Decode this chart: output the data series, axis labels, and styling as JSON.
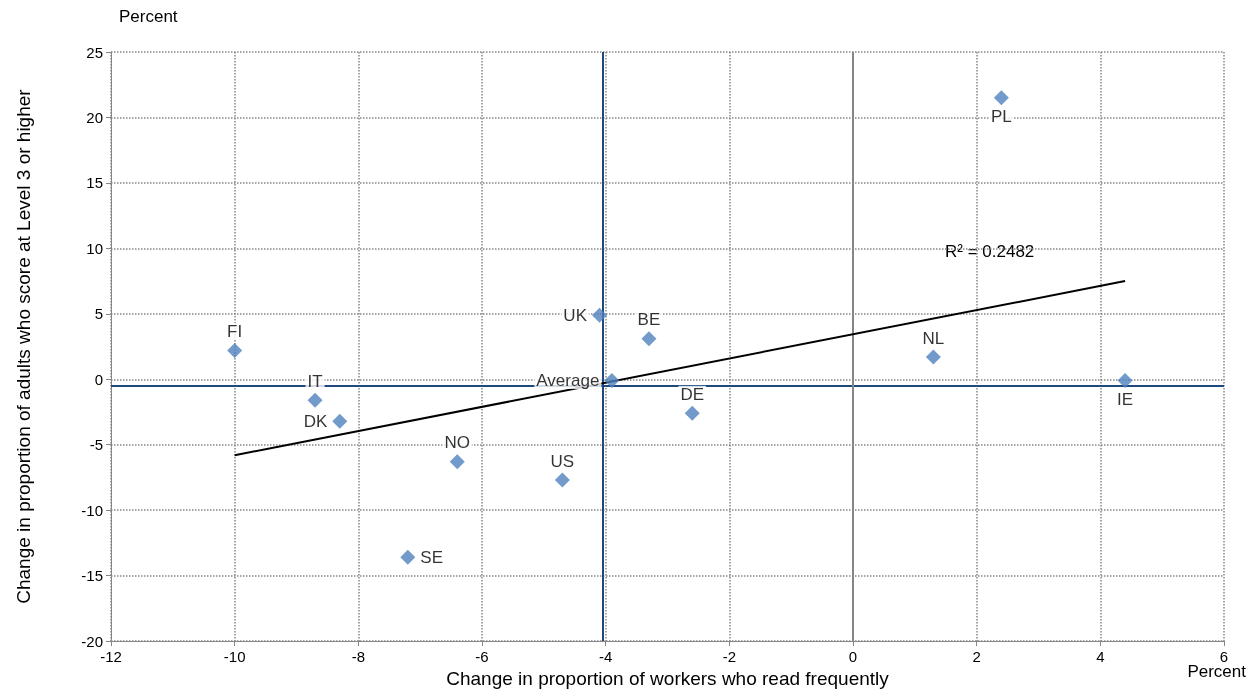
{
  "chart_data": {
    "type": "scatter",
    "xlabel": "Change in proportion of workers who read frequently",
    "ylabel": "Change in proportion of adults who score at Level 3 or higher",
    "xlim": [
      -12,
      6
    ],
    "xticks": [
      -12,
      -10,
      -8,
      -6,
      -4,
      -2,
      0,
      2,
      4,
      6
    ],
    "ylim": [
      -20,
      25
    ],
    "yticks": [
      -20,
      -15,
      -10,
      -5,
      0,
      5,
      10,
      15,
      20,
      25
    ],
    "grid": true,
    "marker": "diamond",
    "legend": false,
    "series": [
      {
        "name": "FI",
        "color": "#4f81bd",
        "x": [
          -10.0
        ],
        "values": [
          2.2
        ]
      },
      {
        "name": "IT",
        "color": "#4f81bd",
        "x": [
          -8.7
        ],
        "values": [
          -1.6
        ]
      },
      {
        "name": "DK",
        "color": "#4f81bd",
        "x": [
          -8.3
        ],
        "values": [
          -3.2
        ]
      },
      {
        "name": "NO",
        "color": "#4f81bd",
        "x": [
          -6.4
        ],
        "values": [
          -6.3
        ]
      },
      {
        "name": "SE",
        "color": "#4f81bd",
        "x": [
          -7.2
        ],
        "values": [
          -13.6
        ]
      },
      {
        "name": "US",
        "color": "#4f81bd",
        "x": [
          -4.7
        ],
        "values": [
          -7.7
        ]
      },
      {
        "name": "UK",
        "color": "#4f81bd",
        "x": [
          -4.1
        ],
        "values": [
          4.9
        ]
      },
      {
        "name": "BE",
        "color": "#4f81bd",
        "x": [
          -3.3
        ],
        "values": [
          3.1
        ]
      },
      {
        "name": "Average",
        "color": "#4f81bd",
        "x": [
          -3.9
        ],
        "values": [
          -0.1
        ]
      },
      {
        "name": "DE",
        "color": "#4f81bd",
        "x": [
          -2.6
        ],
        "values": [
          -2.6
        ]
      },
      {
        "name": "NL",
        "color": "#4f81bd",
        "x": [
          1.3
        ],
        "values": [
          1.7
        ]
      },
      {
        "name": "PL",
        "color": "#4f81bd",
        "x": [
          2.4
        ],
        "values": [
          21.5
        ]
      },
      {
        "name": "IE",
        "color": "#4f81bd",
        "x": [
          4.4
        ],
        "values": [
          -0.1
        ]
      },
      {
        "type": "line",
        "color": "#000000",
        "marker": "none",
        "x": [
          -10.0,
          4.4
        ],
        "values": [
          -5.8,
          7.5
        ]
      }
    ],
    "ref_lines": [
      {
        "axis": "x",
        "value": -4.05,
        "color": "#1f497d"
      },
      {
        "axis": "y",
        "value": -0.5,
        "color": "#1f497d"
      },
      {
        "axis": "x",
        "value": 0,
        "color": "#868686"
      }
    ],
    "annotations": [
      "Percent",
      "Percent",
      "R² = 0.2482"
    ]
  }
}
